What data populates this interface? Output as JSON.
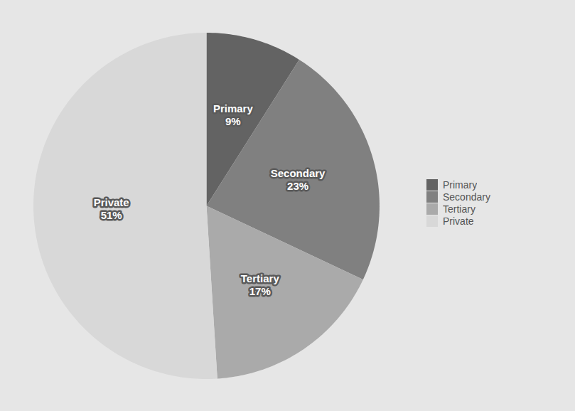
{
  "chart_data": {
    "type": "pie",
    "categories": [
      "Primary",
      "Secondary",
      "Tertiary",
      "Private"
    ],
    "values": [
      9,
      23,
      17,
      51
    ],
    "value_labels": [
      "9%",
      "23%",
      "17%",
      "51%"
    ],
    "colors": [
      "#636363",
      "#808080",
      "#aaaaaa",
      "#d8d8d8"
    ],
    "data_labels": true,
    "legend": "right"
  }
}
